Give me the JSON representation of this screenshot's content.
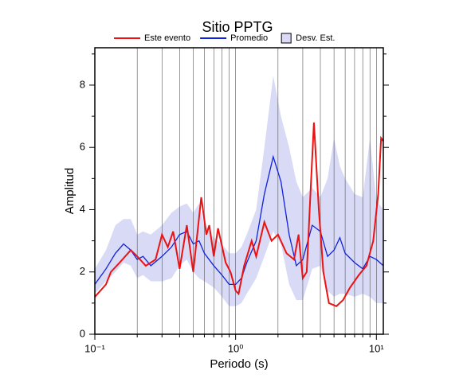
{
  "chart_data": {
    "type": "line",
    "title": "Sitio PPTG",
    "xlabel": "Periodo (s)",
    "ylabel": "Amplitud",
    "xscale": "log",
    "xlim": [
      0.1,
      11.2
    ],
    "ylim": [
      0,
      9.2
    ],
    "xticks": [
      {
        "value": 0.1,
        "label": "10⁻¹"
      },
      {
        "value": 1,
        "label": "10⁰"
      },
      {
        "value": 10,
        "label": "10¹"
      }
    ],
    "xminorticks": [
      0.2,
      0.3,
      0.4,
      0.5,
      0.6,
      0.7,
      0.8,
      0.9,
      2,
      3,
      4,
      5,
      6,
      7,
      8,
      9
    ],
    "yticks": [
      0,
      2,
      4,
      6,
      8
    ],
    "yminorticks": [
      1,
      3,
      5,
      7,
      9
    ],
    "grid": true,
    "series": [
      {
        "name": "Este evento",
        "color": "#ee1111",
        "x": [
          0.1,
          0.12,
          0.13,
          0.15,
          0.18,
          0.2,
          0.23,
          0.27,
          0.3,
          0.33,
          0.36,
          0.4,
          0.45,
          0.5,
          0.57,
          0.62,
          0.65,
          0.7,
          0.75,
          0.85,
          0.92,
          1.0,
          1.05,
          1.15,
          1.3,
          1.4,
          1.6,
          1.8,
          2.0,
          2.3,
          2.6,
          2.8,
          3.0,
          3.2,
          3.4,
          3.6,
          3.9,
          4.2,
          4.6,
          5.2,
          5.8,
          6.5,
          7.5,
          8.5,
          9.5,
          10.3,
          10.8,
          11.2
        ],
        "values": [
          1.2,
          1.6,
          2.0,
          2.3,
          2.7,
          2.5,
          2.2,
          2.4,
          3.2,
          2.8,
          3.3,
          2.1,
          3.5,
          2.0,
          4.4,
          3.2,
          3.5,
          2.5,
          3.4,
          2.3,
          2.0,
          1.4,
          1.3,
          2.2,
          3.0,
          2.5,
          3.6,
          3.0,
          3.2,
          2.6,
          2.4,
          3.2,
          1.8,
          2.0,
          4.5,
          6.8,
          4.0,
          2.0,
          1.0,
          0.9,
          1.1,
          1.5,
          1.9,
          2.2,
          3.0,
          4.5,
          6.3,
          6.2
        ]
      },
      {
        "name": "Promedio",
        "color": "#1122dd",
        "x": [
          0.1,
          0.12,
          0.14,
          0.16,
          0.18,
          0.2,
          0.22,
          0.25,
          0.3,
          0.35,
          0.4,
          0.45,
          0.5,
          0.55,
          0.6,
          0.7,
          0.8,
          0.9,
          1.0,
          1.1,
          1.2,
          1.4,
          1.6,
          1.85,
          2.1,
          2.4,
          2.7,
          3.0,
          3.5,
          4.0,
          4.5,
          5.0,
          5.5,
          6.0,
          7.0,
          8.0,
          9.0,
          10,
          11.2
        ],
        "values": [
          1.6,
          2.1,
          2.6,
          2.9,
          2.7,
          2.4,
          2.5,
          2.2,
          2.5,
          2.8,
          3.2,
          3.3,
          2.9,
          3.0,
          2.6,
          2.2,
          1.9,
          1.6,
          1.6,
          1.8,
          2.3,
          3.0,
          4.5,
          5.7,
          4.9,
          3.2,
          2.2,
          2.4,
          3.5,
          3.3,
          2.5,
          2.7,
          3.1,
          2.6,
          2.3,
          2.1,
          2.5,
          2.4,
          2.2
        ]
      }
    ],
    "band": {
      "name": "Desv. Est.",
      "color": "#d8daf6",
      "upper": [
        2.1,
        2.7,
        3.5,
        3.7,
        3.7,
        3.2,
        3.3,
        3.2,
        3.5,
        3.9,
        4.1,
        4.2,
        3.9,
        4.2,
        3.5,
        3.1,
        2.9,
        2.6,
        2.6,
        2.8,
        3.2,
        4.0,
        6.0,
        8.3,
        7.0,
        6.0,
        4.9,
        4.4,
        4.7,
        4.4,
        5.0,
        6.3,
        5.4,
        5.0,
        4.5,
        4.4,
        6.3,
        4.3,
        4.0
      ],
      "lower": [
        1.3,
        1.7,
        2.0,
        2.3,
        2.2,
        1.8,
        1.9,
        1.7,
        1.7,
        1.8,
        2.2,
        2.4,
        2.0,
        1.8,
        1.7,
        1.5,
        1.2,
        0.9,
        0.9,
        1.0,
        1.3,
        1.8,
        2.5,
        3.3,
        2.9,
        1.6,
        1.1,
        1.1,
        2.1,
        2.2,
        1.4,
        1.2,
        1.3,
        1.3,
        1.2,
        1.3,
        1.2,
        1.0,
        1.0
      ]
    }
  }
}
